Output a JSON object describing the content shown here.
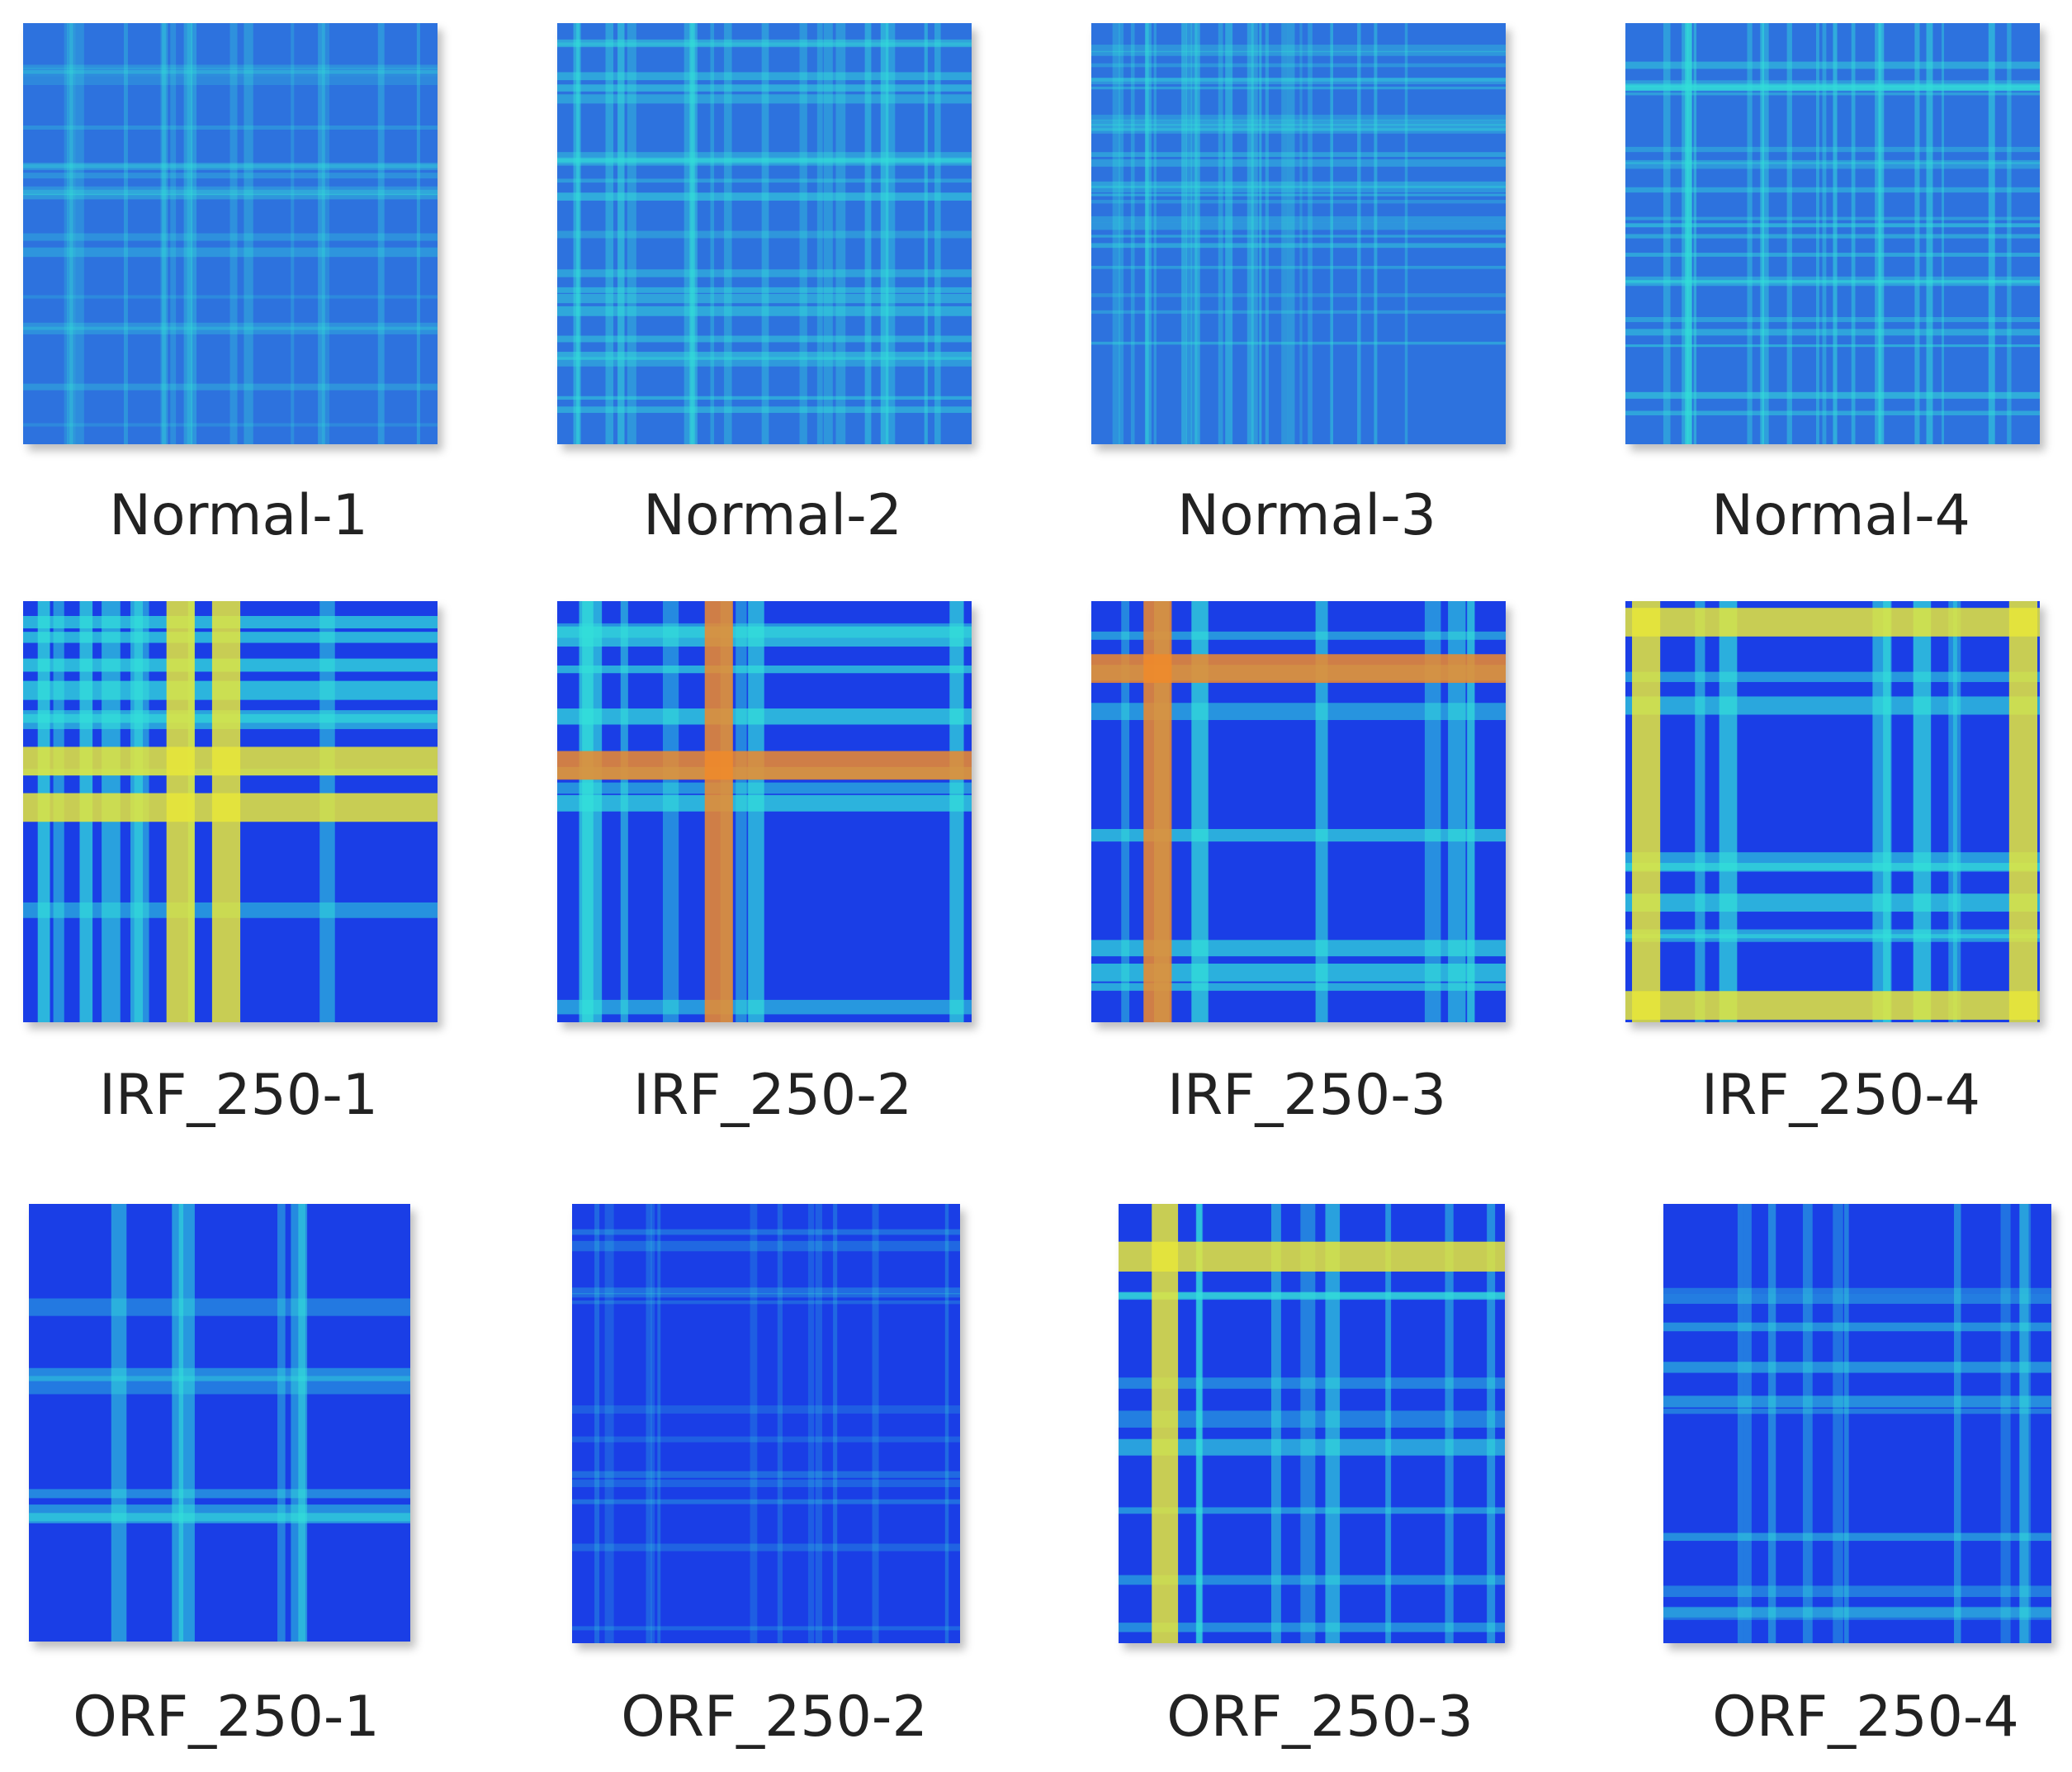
{
  "colors": {
    "base_normal": "#2d63e0",
    "base_fault": "#1a3ee6",
    "line_cyan": "#33e0d9",
    "line_yellow": "#e8e63a",
    "line_orange": "#f08a2a"
  },
  "panels": [
    {
      "label": "Normal-1",
      "style": "normal"
    },
    {
      "label": "Normal-2",
      "style": "normal"
    },
    {
      "label": "Normal-3",
      "style": "normal"
    },
    {
      "label": "Normal-4",
      "style": "normal"
    },
    {
      "label": "IRF_250-1",
      "style": "irf"
    },
    {
      "label": "IRF_250-2",
      "style": "irf"
    },
    {
      "label": "IRF_250-3",
      "style": "irf"
    },
    {
      "label": "IRF_250-4",
      "style": "irf"
    },
    {
      "label": "ORF_250-1",
      "style": "orf"
    },
    {
      "label": "ORF_250-2",
      "style": "orf"
    },
    {
      "label": "ORF_250-3",
      "style": "orf"
    },
    {
      "label": "ORF_250-4",
      "style": "orf"
    }
  ]
}
